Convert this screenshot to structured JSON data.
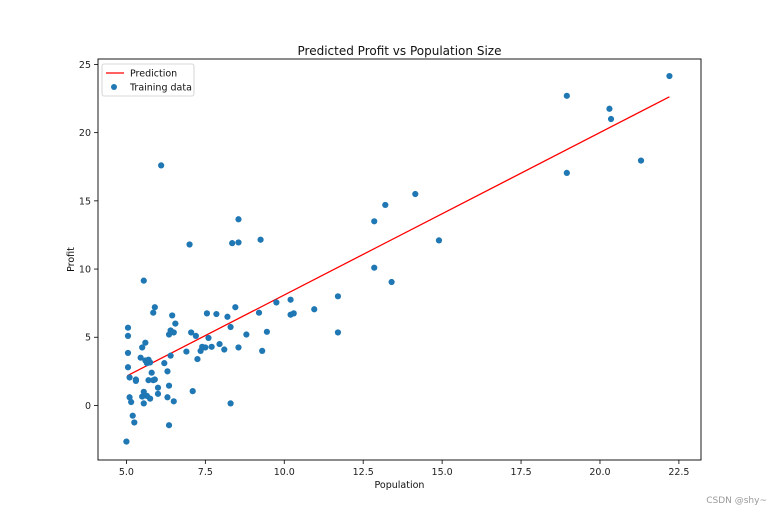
{
  "chart_data": {
    "type": "scatter",
    "title": "Predicted Profit vs Population Size",
    "xlabel": "Population",
    "ylabel": "Profit",
    "xlim": [
      4.1,
      23.2
    ],
    "ylim": [
      -4.0,
      25.4
    ],
    "xticks": [
      5.0,
      7.5,
      10.0,
      12.5,
      15.0,
      17.5,
      20.0,
      22.5
    ],
    "xtick_labels": [
      "5.0",
      "7.5",
      "10.0",
      "12.5",
      "15.0",
      "17.5",
      "20.0",
      "22.5"
    ],
    "yticks": [
      0,
      5,
      10,
      15,
      20,
      25
    ],
    "ytick_labels": [
      "0",
      "5",
      "10",
      "15",
      "20",
      "25"
    ],
    "grid": false,
    "legend_position": "top-left",
    "colors": {
      "prediction": "#ff0000",
      "training": "#1f77b4"
    },
    "series": [
      {
        "name": "Prediction",
        "kind": "line",
        "x": [
          5.03,
          22.2
        ],
        "y": [
          2.18,
          22.63
        ]
      },
      {
        "name": "Training data",
        "kind": "scatter",
        "points": [
          [
            22.2,
            24.15
          ],
          [
            18.95,
            22.7
          ],
          [
            20.3,
            21.75
          ],
          [
            20.35,
            21.0
          ],
          [
            21.3,
            17.95
          ],
          [
            18.95,
            17.05
          ],
          [
            14.15,
            15.5
          ],
          [
            13.2,
            14.7
          ],
          [
            12.85,
            13.5
          ],
          [
            14.9,
            12.1
          ],
          [
            12.85,
            10.1
          ],
          [
            13.4,
            9.05
          ],
          [
            6.1,
            17.6
          ],
          [
            7.0,
            11.8
          ],
          [
            8.35,
            11.9
          ],
          [
            8.55,
            11.95
          ],
          [
            8.55,
            13.65
          ],
          [
            9.25,
            12.15
          ],
          [
            11.7,
            8.0
          ],
          [
            10.95,
            7.05
          ],
          [
            10.2,
            7.75
          ],
          [
            10.2,
            6.65
          ],
          [
            10.3,
            6.75
          ],
          [
            9.75,
            7.55
          ],
          [
            9.2,
            6.8
          ],
          [
            9.45,
            5.4
          ],
          [
            9.3,
            4.0
          ],
          [
            11.7,
            5.35
          ],
          [
            8.8,
            5.2
          ],
          [
            8.45,
            7.2
          ],
          [
            8.3,
            5.75
          ],
          [
            8.2,
            6.5
          ],
          [
            7.85,
            6.7
          ],
          [
            7.55,
            6.75
          ],
          [
            7.6,
            4.95
          ],
          [
            7.7,
            4.3
          ],
          [
            7.5,
            4.25
          ],
          [
            7.35,
            4.0
          ],
          [
            7.4,
            4.3
          ],
          [
            7.25,
            3.4
          ],
          [
            7.2,
            5.1
          ],
          [
            7.05,
            5.35
          ],
          [
            6.9,
            3.95
          ],
          [
            7.1,
            1.05
          ],
          [
            6.55,
            6.0
          ],
          [
            6.45,
            6.6
          ],
          [
            6.5,
            5.35
          ],
          [
            6.4,
            5.5
          ],
          [
            6.35,
            5.2
          ],
          [
            6.4,
            3.65
          ],
          [
            6.2,
            3.1
          ],
          [
            6.3,
            2.5
          ],
          [
            6.35,
            1.45
          ],
          [
            6.3,
            0.6
          ],
          [
            6.5,
            0.3
          ],
          [
            6.35,
            -1.45
          ],
          [
            8.3,
            0.15
          ],
          [
            7.95,
            4.5
          ],
          [
            8.1,
            4.1
          ],
          [
            8.55,
            4.25
          ],
          [
            5.9,
            7.2
          ],
          [
            5.85,
            6.8
          ],
          [
            5.55,
            9.15
          ],
          [
            5.6,
            4.6
          ],
          [
            5.5,
            4.25
          ],
          [
            5.45,
            3.5
          ],
          [
            5.6,
            3.3
          ],
          [
            5.65,
            3.1
          ],
          [
            5.7,
            3.35
          ],
          [
            5.75,
            3.15
          ],
          [
            5.8,
            2.4
          ],
          [
            5.7,
            1.85
          ],
          [
            5.85,
            1.85
          ],
          [
            5.9,
            1.9
          ],
          [
            6.0,
            1.3
          ],
          [
            6.0,
            0.85
          ],
          [
            5.55,
            1.0
          ],
          [
            5.5,
            0.65
          ],
          [
            5.65,
            0.7
          ],
          [
            5.75,
            0.5
          ],
          [
            5.55,
            0.15
          ],
          [
            5.05,
            5.7
          ],
          [
            5.05,
            5.1
          ],
          [
            5.05,
            3.85
          ],
          [
            5.05,
            2.8
          ],
          [
            5.1,
            2.05
          ],
          [
            5.3,
            1.9
          ],
          [
            5.3,
            1.8
          ],
          [
            5.1,
            0.6
          ],
          [
            5.15,
            0.25
          ],
          [
            5.2,
            -0.75
          ],
          [
            5.25,
            -1.25
          ],
          [
            5.0,
            -2.65
          ]
        ]
      }
    ]
  },
  "watermark": "CSDN @shy~"
}
